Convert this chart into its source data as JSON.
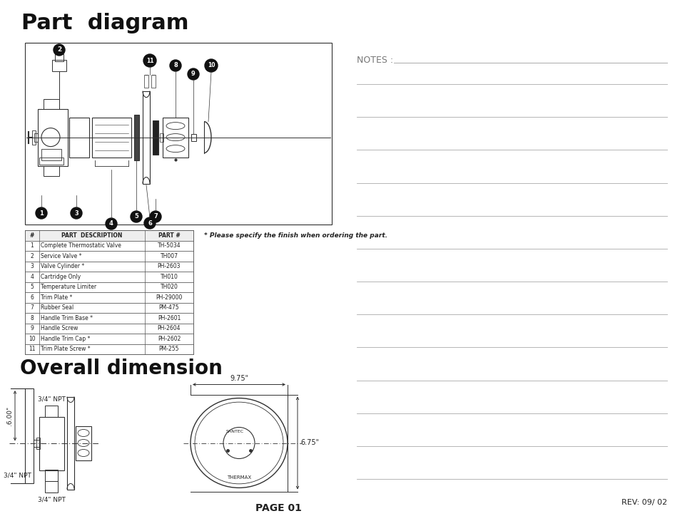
{
  "background_color": "#ffffff",
  "title_part_diagram": "Part  diagram",
  "title_overall": "Overall dimension",
  "notes_label": "NOTES : ",
  "page_label": "PAGE 01",
  "rev_label": "REV: 09/ 02",
  "finish_note": "* Please specify the finish when ordering the part.",
  "table_headers": [
    "#",
    "PART  DESCRIPTION",
    "PART #"
  ],
  "table_rows": [
    [
      "1",
      "Complete Thermostatic Valve",
      "TH-5034"
    ],
    [
      "2",
      "Service Valve *",
      "TH007"
    ],
    [
      "3",
      "Valve Cylinder *",
      "PH-2603"
    ],
    [
      "4",
      "Cartridge Only",
      "TH010"
    ],
    [
      "5",
      "Temperature Limiter",
      "TH020"
    ],
    [
      "6",
      "Trim Plate *",
      "PH-29000"
    ],
    [
      "7",
      "Rubber Seal",
      "PM-475"
    ],
    [
      "8",
      "Handle Trim Base *",
      "PH-2601"
    ],
    [
      "9",
      "Handle Screw",
      "PH-2604"
    ],
    [
      "10",
      "Handle Trim Cap *",
      "PH-2602"
    ],
    [
      "11",
      "Trim Plate Screw *",
      "PM-255"
    ]
  ],
  "dim_975": "9.75\"",
  "dim_675": "6.75\"",
  "dim_600": ".6.00\"",
  "npt_top": "3/4\" NPT",
  "npt_mid": "3/4\" NPT",
  "npt_bot": "3/4\" NPT",
  "line_color": "#303030",
  "text_color": "#222222",
  "notes_line_color": "#aaaaaa",
  "table_line_color": "#555555"
}
